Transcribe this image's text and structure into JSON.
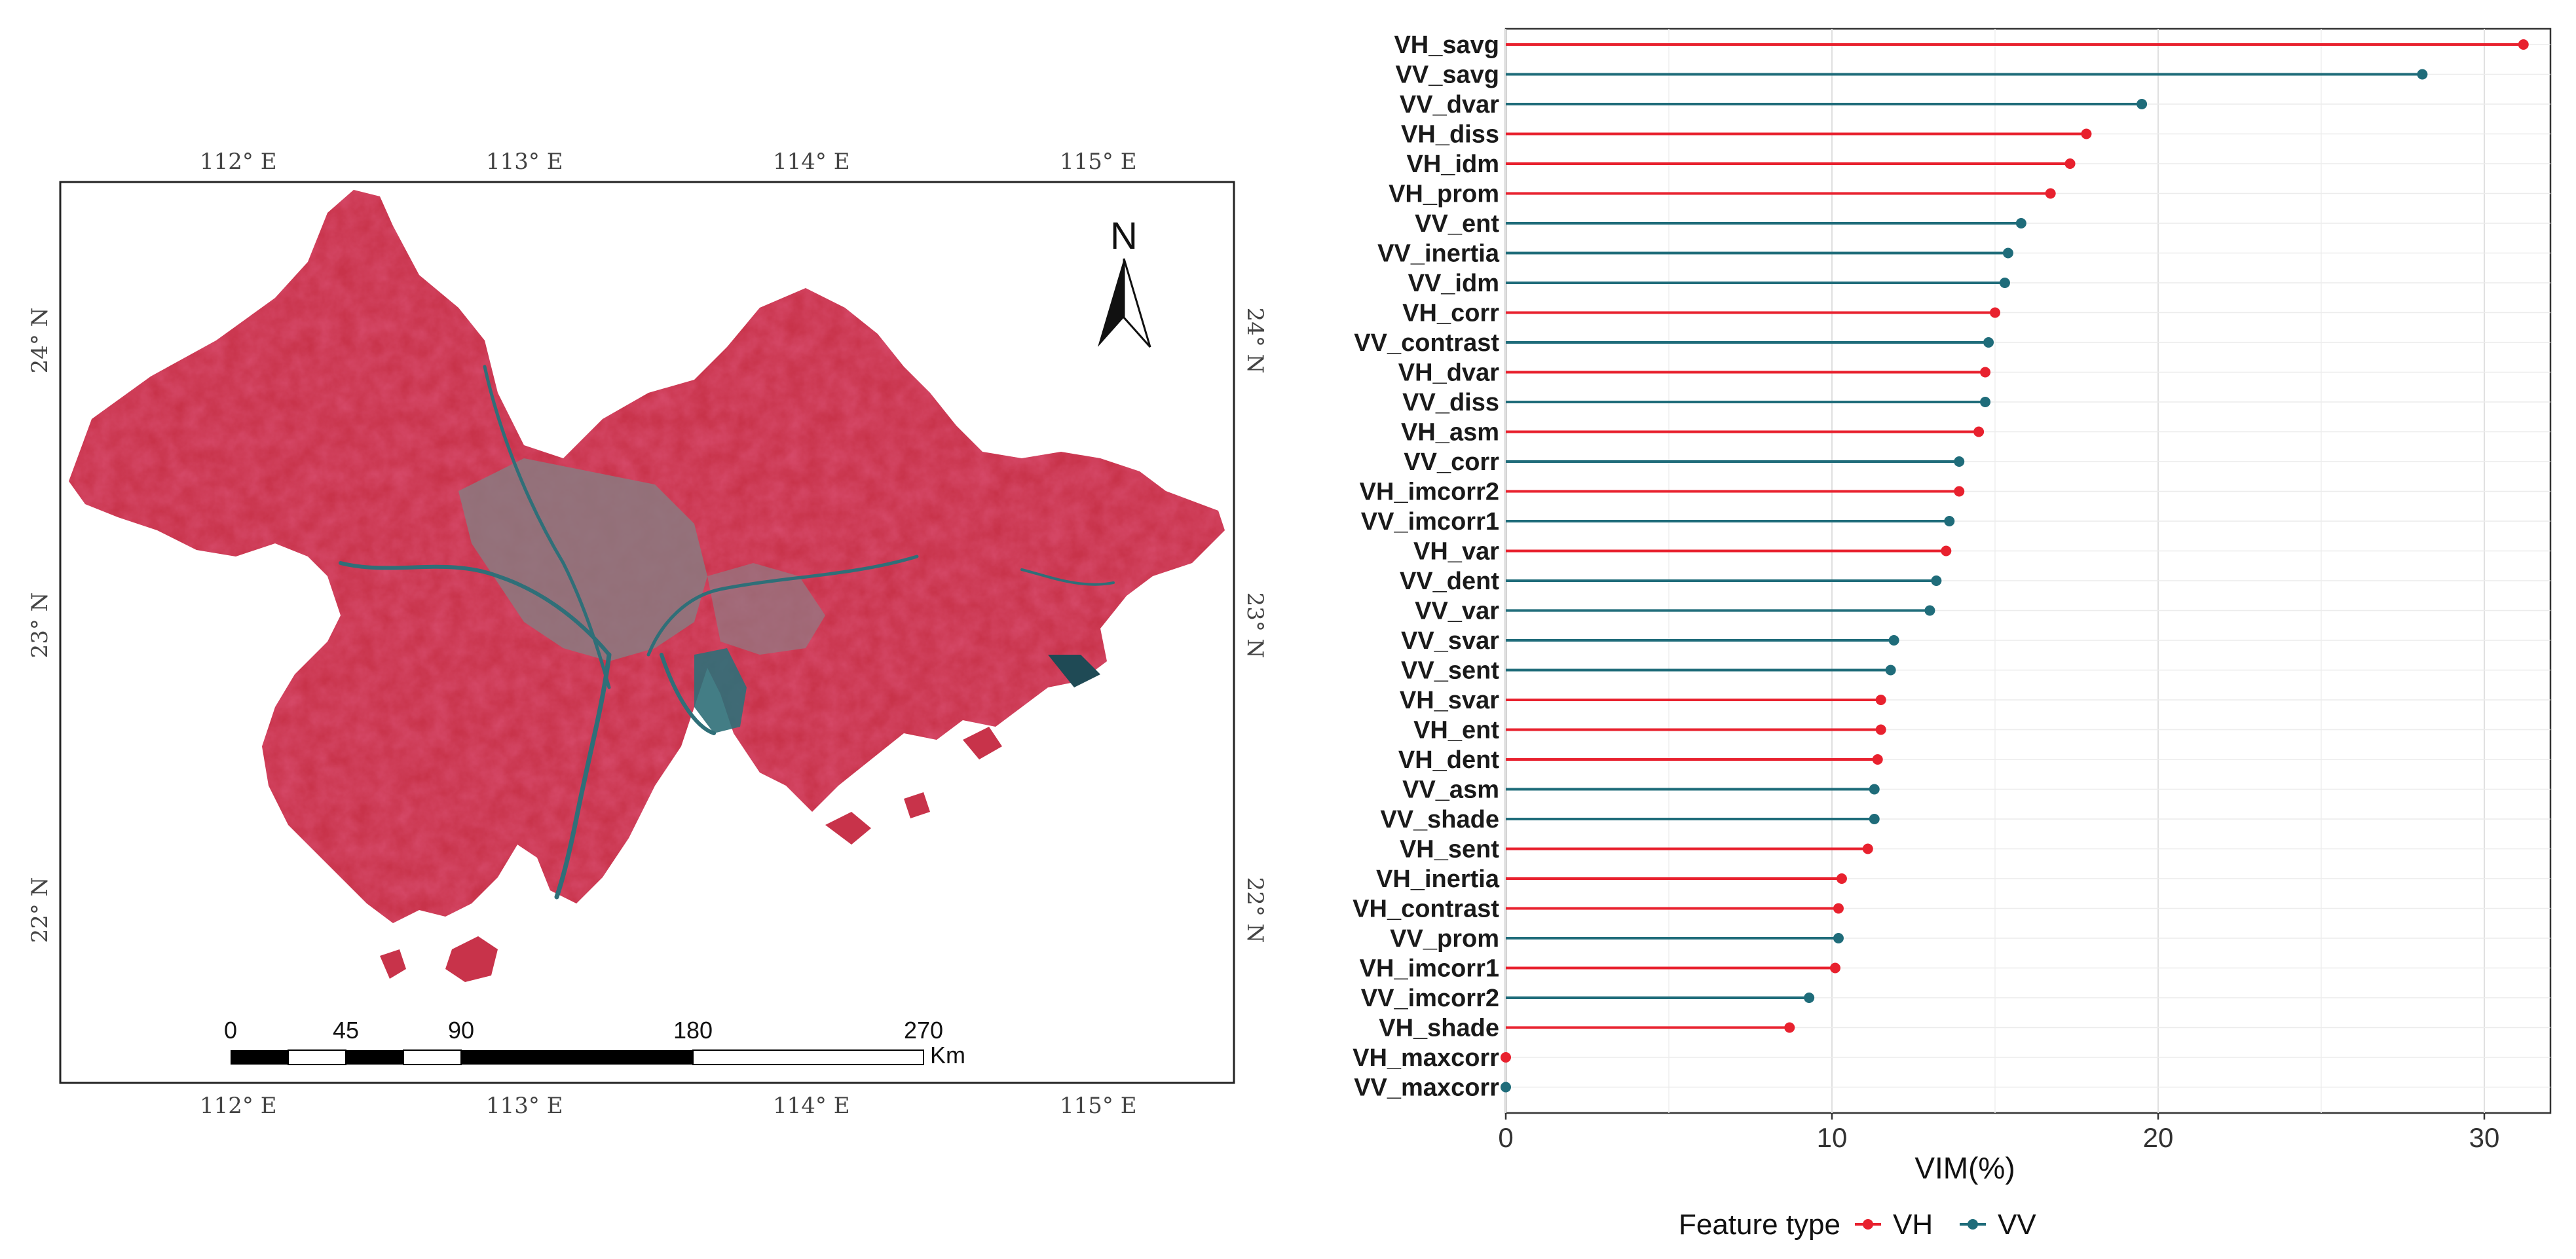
{
  "map": {
    "lon_labels": [
      "112° E",
      "113° E",
      "114° E",
      "115° E"
    ],
    "lat_labels": [
      "24° N",
      "23° N",
      "22° N"
    ],
    "north_label": "N",
    "scale_labels": [
      "0",
      "45",
      "90",
      "180",
      "270"
    ],
    "scale_unit": "Km",
    "colors": {
      "land": "#c8334a",
      "water": "#2f6f78",
      "urban": "#8a7a80"
    }
  },
  "chart_data": {
    "type": "lollipop",
    "xlabel": "VIM(%)",
    "xlim": [
      0,
      32
    ],
    "xticks": [
      0,
      10,
      20,
      30
    ],
    "legend": {
      "title": "Feature type",
      "entries": [
        "VH",
        "VV"
      ],
      "position": "bottom"
    },
    "colors": {
      "VH": "#e8212e",
      "VV": "#1f6c7a"
    },
    "features": [
      {
        "name": "VH_savg",
        "type": "VH",
        "value": 31.2
      },
      {
        "name": "VV_savg",
        "type": "VV",
        "value": 28.1
      },
      {
        "name": "VV_dvar",
        "type": "VV",
        "value": 19.5
      },
      {
        "name": "VH_diss",
        "type": "VH",
        "value": 17.8
      },
      {
        "name": "VH_idm",
        "type": "VH",
        "value": 17.3
      },
      {
        "name": "VH_prom",
        "type": "VH",
        "value": 16.7
      },
      {
        "name": "VV_ent",
        "type": "VV",
        "value": 15.8
      },
      {
        "name": "VV_inertia",
        "type": "VV",
        "value": 15.4
      },
      {
        "name": "VV_idm",
        "type": "VV",
        "value": 15.3
      },
      {
        "name": "VH_corr",
        "type": "VH",
        "value": 15.0
      },
      {
        "name": "VV_contrast",
        "type": "VV",
        "value": 14.8
      },
      {
        "name": "VH_dvar",
        "type": "VH",
        "value": 14.7
      },
      {
        "name": "VV_diss",
        "type": "VV",
        "value": 14.7
      },
      {
        "name": "VH_asm",
        "type": "VH",
        "value": 14.5
      },
      {
        "name": "VV_corr",
        "type": "VV",
        "value": 13.9
      },
      {
        "name": "VH_imcorr2",
        "type": "VH",
        "value": 13.9
      },
      {
        "name": "VV_imcorr1",
        "type": "VV",
        "value": 13.6
      },
      {
        "name": "VH_var",
        "type": "VH",
        "value": 13.5
      },
      {
        "name": "VV_dent",
        "type": "VV",
        "value": 13.2
      },
      {
        "name": "VV_var",
        "type": "VV",
        "value": 13.0
      },
      {
        "name": "VV_svar",
        "type": "VV",
        "value": 11.9
      },
      {
        "name": "VV_sent",
        "type": "VV",
        "value": 11.8
      },
      {
        "name": "VH_svar",
        "type": "VH",
        "value": 11.5
      },
      {
        "name": "VH_ent",
        "type": "VH",
        "value": 11.5
      },
      {
        "name": "VH_dent",
        "type": "VH",
        "value": 11.4
      },
      {
        "name": "VV_asm",
        "type": "VV",
        "value": 11.3
      },
      {
        "name": "VV_shade",
        "type": "VV",
        "value": 11.3
      },
      {
        "name": "VH_sent",
        "type": "VH",
        "value": 11.1
      },
      {
        "name": "VH_inertia",
        "type": "VH",
        "value": 10.3
      },
      {
        "name": "VH_contrast",
        "type": "VH",
        "value": 10.2
      },
      {
        "name": "VV_prom",
        "type": "VV",
        "value": 10.2
      },
      {
        "name": "VH_imcorr1",
        "type": "VH",
        "value": 10.1
      },
      {
        "name": "VV_imcorr2",
        "type": "VV",
        "value": 9.3
      },
      {
        "name": "VH_shade",
        "type": "VH",
        "value": 8.7
      },
      {
        "name": "VH_maxcorr",
        "type": "VH",
        "value": 0.0
      },
      {
        "name": "VV_maxcorr",
        "type": "VV",
        "value": 0.0
      }
    ]
  }
}
